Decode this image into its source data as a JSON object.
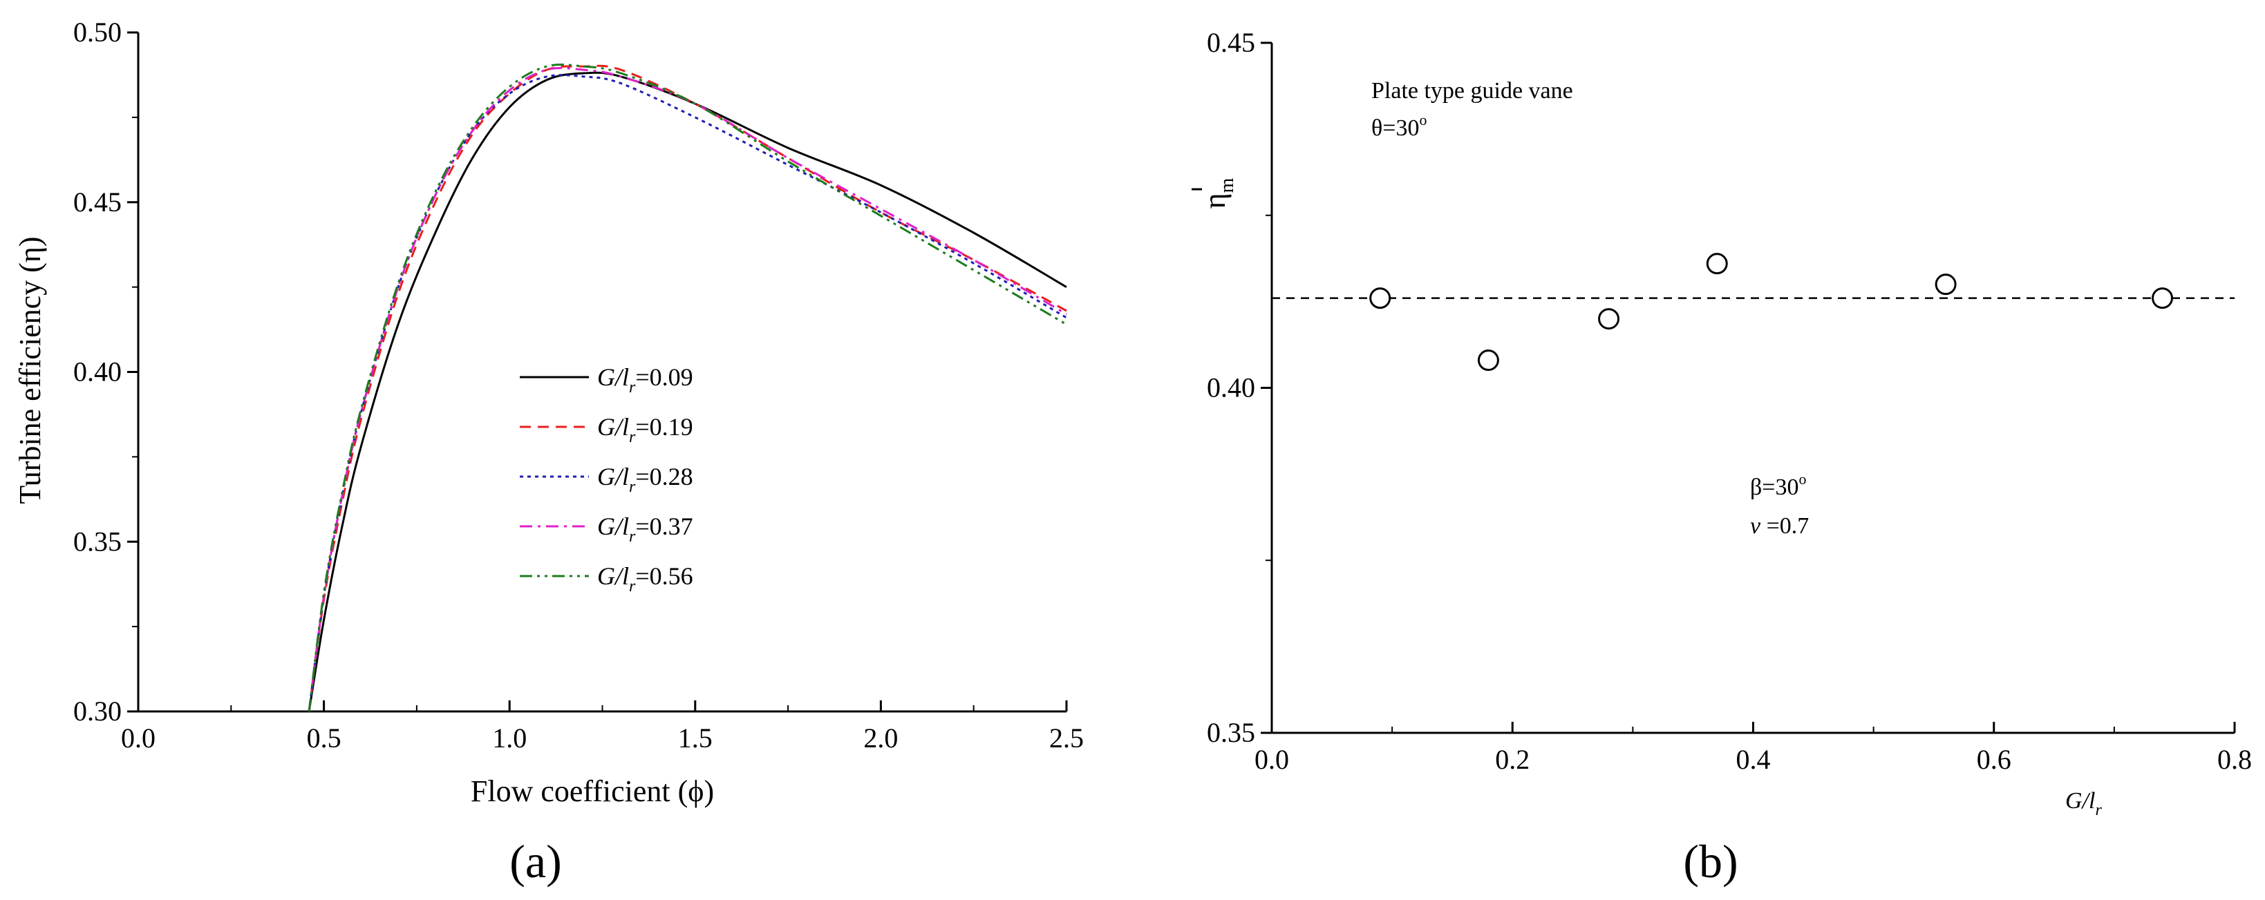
{
  "chart_data": [
    {
      "type": "line",
      "panel_label": "(a)",
      "xlabel": "Flow coefficient (ϕ)",
      "ylabel": "Turbine efficiency (η)",
      "xlim": [
        0.0,
        2.5
      ],
      "ylim": [
        0.3,
        0.5
      ],
      "xticks": [
        "0.0",
        "0.5",
        "1.0",
        "1.5",
        "2.0",
        "2.5"
      ],
      "yticks": [
        "0.30",
        "0.35",
        "0.40",
        "0.45",
        "0.50"
      ],
      "legend_position": "center",
      "series": [
        {
          "name": "G/lr=0.09",
          "legend_label": {
            "pre": "G/l",
            "sub": "r",
            "post": "=0.09"
          },
          "color": "#000000",
          "dash": "solid",
          "x": [
            0.46,
            0.5,
            0.55,
            0.6,
            0.7,
            0.8,
            0.9,
            1.0,
            1.1,
            1.2,
            1.3,
            1.5,
            1.75,
            2.0,
            2.25,
            2.5
          ],
          "y": [
            0.3,
            0.327,
            0.355,
            0.378,
            0.414,
            0.441,
            0.463,
            0.478,
            0.486,
            0.488,
            0.487,
            0.479,
            0.466,
            0.455,
            0.441,
            0.425
          ]
        },
        {
          "name": "G/lr=0.19",
          "legend_label": {
            "pre": "G/l",
            "sub": "r",
            "post": "=0.19"
          },
          "color": "#e8201e",
          "dash": "dashed",
          "x": [
            0.46,
            0.5,
            0.55,
            0.6,
            0.7,
            0.8,
            0.9,
            1.0,
            1.1,
            1.2,
            1.3,
            1.5,
            1.75,
            2.0,
            2.25,
            2.5
          ],
          "y": [
            0.3,
            0.333,
            0.362,
            0.386,
            0.423,
            0.45,
            0.47,
            0.482,
            0.489,
            0.49,
            0.489,
            0.479,
            0.463,
            0.447,
            0.433,
            0.418
          ]
        },
        {
          "name": "G/lr=0.28",
          "legend_label": {
            "pre": "G/l",
            "sub": "r",
            "post": "=0.28"
          },
          "color": "#1f1fb4",
          "dash": "dotted",
          "x": [
            0.46,
            0.5,
            0.55,
            0.6,
            0.7,
            0.8,
            0.9,
            1.0,
            1.1,
            1.2,
            1.3,
            1.5,
            1.75,
            2.0,
            2.25,
            2.5
          ],
          "y": [
            0.3,
            0.334,
            0.364,
            0.388,
            0.425,
            0.452,
            0.471,
            0.482,
            0.487,
            0.487,
            0.485,
            0.475,
            0.461,
            0.447,
            0.432,
            0.416
          ]
        },
        {
          "name": "G/lr=0.37",
          "legend_label": {
            "pre": "G/l",
            "sub": "r",
            "post": "=0.37"
          },
          "color": "#e020c8",
          "dash": "dashdot",
          "x": [
            0.46,
            0.5,
            0.55,
            0.6,
            0.7,
            0.8,
            0.9,
            1.0,
            1.1,
            1.2,
            1.3,
            1.5,
            1.75,
            2.0,
            2.25,
            2.5
          ],
          "y": [
            0.3,
            0.334,
            0.364,
            0.388,
            0.425,
            0.452,
            0.471,
            0.483,
            0.489,
            0.489,
            0.487,
            0.479,
            0.463,
            0.448,
            0.433,
            0.417
          ]
        },
        {
          "name": "G/lr=0.56",
          "legend_label": {
            "pre": "G/l",
            "sub": "r",
            "post": "=0.56"
          },
          "color": "#1c7d1c",
          "dash": "dashdotdot",
          "x": [
            0.46,
            0.5,
            0.55,
            0.6,
            0.7,
            0.8,
            0.9,
            1.0,
            1.1,
            1.2,
            1.3,
            1.5,
            1.75,
            2.0,
            2.25,
            2.5
          ],
          "y": [
            0.3,
            0.335,
            0.365,
            0.389,
            0.426,
            0.453,
            0.472,
            0.484,
            0.49,
            0.49,
            0.488,
            0.479,
            0.462,
            0.446,
            0.43,
            0.414
          ]
        }
      ]
    },
    {
      "type": "scatter",
      "panel_label": "(b)",
      "xlabel": {
        "pre": "G/l",
        "sub": "r"
      },
      "ylabel": "η",
      "ylabel_subscript": "m",
      "xlim": [
        0.0,
        0.8
      ],
      "ylim": [
        0.35,
        0.45
      ],
      "xticks": [
        "0.0",
        "0.2",
        "0.4",
        "0.6",
        "0.8"
      ],
      "yticks": [
        "0.35",
        "0.40",
        "0.45"
      ],
      "annotations": [
        {
          "text": "Plate type guide vane"
        },
        {
          "text": "θ=30",
          "sup": "o"
        },
        {
          "text": "β=30",
          "sup": "o"
        },
        {
          "text_italic": "v",
          "text": " =0.7"
        }
      ],
      "reference_line": {
        "y": 0.413,
        "style": "dashed"
      },
      "points": {
        "x": [
          0.09,
          0.18,
          0.28,
          0.37,
          0.56,
          0.74
        ],
        "y": [
          0.413,
          0.404,
          0.41,
          0.418,
          0.415,
          0.413
        ]
      }
    }
  ]
}
